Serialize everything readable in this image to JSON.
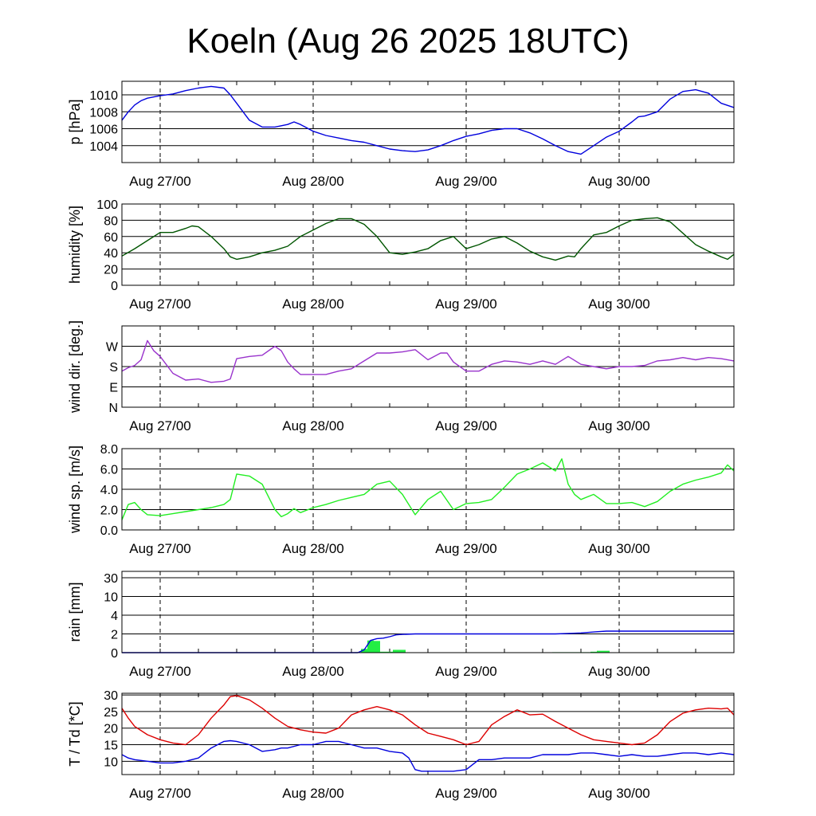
{
  "title": "Koeln (Aug 26 2025 18UTC)",
  "x_labels": [
    "Aug 27/00",
    "Aug 28/00",
    "Aug 29/00",
    "Aug 30/00"
  ],
  "colors": {
    "pressure": "#0000dd",
    "humidity": "#005500",
    "wind_dir": "#9933cc",
    "wind_speed": "#22ee22",
    "rain_bar": "#22ee44",
    "rain_sum": "#0000dd",
    "temperature": "#dd0000",
    "dewpoint": "#0000dd"
  },
  "chart_data": [
    {
      "name": "pressure",
      "type": "line",
      "ylabel": "p [hPa]",
      "x_unit": "hours from Aug 26 18UTC",
      "xlim": [
        0,
        96
      ],
      "ylim": [
        1002,
        1011.6
      ],
      "yticks": [
        1004,
        1006,
        1008,
        1010
      ],
      "series": [
        {
          "name": "p",
          "x": [
            0,
            1,
            2,
            3,
            4,
            6,
            8,
            10,
            12,
            14,
            16,
            17,
            18,
            19,
            20,
            22,
            24,
            26,
            27,
            28,
            30,
            32,
            34,
            36,
            38,
            40,
            42,
            44,
            46,
            48,
            50,
            52,
            54,
            56,
            58,
            60,
            62,
            64,
            66,
            68,
            70,
            72,
            74,
            76,
            78,
            80,
            81,
            82,
            84,
            86,
            88,
            90,
            92,
            94,
            96
          ],
          "y": [
            1007.0,
            1008.0,
            1008.8,
            1009.3,
            1009.6,
            1009.9,
            1010.1,
            1010.5,
            1010.8,
            1011.0,
            1010.8,
            1010.0,
            1009.0,
            1008.0,
            1007.0,
            1006.2,
            1006.2,
            1006.5,
            1006.8,
            1006.5,
            1005.7,
            1005.2,
            1004.9,
            1004.6,
            1004.4,
            1004.0,
            1003.6,
            1003.4,
            1003.3,
            1003.5,
            1004.0,
            1004.6,
            1005.1,
            1005.4,
            1005.8,
            1006.0,
            1006.0,
            1005.5,
            1004.8,
            1004.0,
            1003.3,
            1003.0,
            1004.0,
            1005.0,
            1005.7,
            1006.8,
            1007.4,
            1007.5,
            1008.0,
            1009.5,
            1010.4,
            1010.6,
            1010.2,
            1009.0,
            1008.5
          ]
        }
      ]
    },
    {
      "name": "humidity",
      "type": "line",
      "ylabel": "humidity [%]",
      "xlim": [
        0,
        96
      ],
      "ylim": [
        0,
        100
      ],
      "yticks": [
        0,
        20,
        40,
        60,
        80,
        100
      ],
      "series": [
        {
          "name": "rh",
          "x": [
            0,
            2,
            4,
            6,
            8,
            10,
            11,
            12,
            14,
            16,
            17,
            18,
            20,
            22,
            24,
            26,
            28,
            30,
            32,
            34,
            36,
            38,
            40,
            42,
            44,
            46,
            48,
            50,
            52,
            54,
            56,
            58,
            60,
            62,
            64,
            66,
            68,
            70,
            71,
            72,
            74,
            76,
            78,
            80,
            82,
            84,
            86,
            88,
            90,
            92,
            94,
            95,
            96
          ],
          "y": [
            36,
            45,
            55,
            65,
            65,
            70,
            73,
            72,
            60,
            45,
            35,
            32,
            35,
            40,
            43,
            48,
            60,
            68,
            76,
            82,
            82,
            75,
            60,
            40,
            38,
            41,
            45,
            55,
            60,
            45,
            50,
            57,
            60,
            52,
            42,
            35,
            31,
            36,
            35,
            45,
            62,
            65,
            73,
            80,
            82,
            83,
            78,
            64,
            50,
            42,
            35,
            32,
            38
          ]
        }
      ]
    },
    {
      "name": "wind_direction",
      "type": "line",
      "ylabel": "wind dir. [deg.]",
      "xlim": [
        0,
        96
      ],
      "ylim": [
        0,
        360
      ],
      "yticks": [
        0,
        90,
        180,
        270
      ],
      "ytick_labels": [
        "N",
        "E",
        "S",
        "W"
      ],
      "series": [
        {
          "name": "dd",
          "x": [
            0,
            1,
            2,
            3,
            4,
            5,
            6,
            8,
            10,
            12,
            14,
            16,
            17,
            18,
            20,
            22,
            24,
            25,
            26,
            27,
            28,
            30,
            32,
            34,
            36,
            38,
            40,
            42,
            44,
            46,
            48,
            50,
            51,
            52,
            54,
            56,
            58,
            60,
            62,
            64,
            66,
            68,
            70,
            72,
            74,
            76,
            78,
            80,
            82,
            84,
            86,
            88,
            90,
            92,
            94,
            96
          ],
          "y": [
            160,
            175,
            185,
            210,
            295,
            250,
            225,
            150,
            120,
            125,
            110,
            115,
            125,
            215,
            225,
            230,
            270,
            250,
            200,
            170,
            145,
            145,
            145,
            160,
            170,
            205,
            240,
            240,
            245,
            255,
            210,
            240,
            240,
            200,
            160,
            160,
            190,
            205,
            200,
            190,
            205,
            190,
            225,
            190,
            180,
            170,
            180,
            180,
            185,
            205,
            210,
            220,
            210,
            220,
            215,
            205
          ]
        }
      ]
    },
    {
      "name": "wind_speed",
      "type": "line",
      "ylabel": "wind sp. [m/s]",
      "xlim": [
        0,
        96
      ],
      "ylim": [
        0,
        8
      ],
      "yticks": [
        0,
        2,
        4,
        6,
        8
      ],
      "ytick_labels": [
        "0.0",
        "2.0",
        "4.0",
        "6.0",
        "8.0"
      ],
      "series": [
        {
          "name": "ff",
          "x": [
            0,
            1,
            2,
            3,
            4,
            6,
            8,
            10,
            12,
            14,
            16,
            17,
            18,
            20,
            22,
            24,
            25,
            26,
            27,
            28,
            30,
            32,
            34,
            36,
            38,
            40,
            42,
            44,
            46,
            48,
            50,
            52,
            54,
            56,
            58,
            60,
            62,
            64,
            66,
            68,
            69,
            70,
            71,
            72,
            74,
            76,
            78,
            80,
            82,
            84,
            86,
            88,
            90,
            92,
            94,
            95,
            96
          ],
          "y": [
            1.0,
            2.5,
            2.7,
            2.0,
            1.5,
            1.4,
            1.6,
            1.8,
            2.0,
            2.2,
            2.5,
            3.0,
            5.5,
            5.3,
            4.5,
            2.0,
            1.3,
            1.6,
            2.1,
            1.7,
            2.2,
            2.5,
            2.9,
            3.2,
            3.5,
            4.5,
            4.8,
            3.5,
            1.5,
            3.0,
            3.8,
            2.0,
            2.6,
            2.7,
            3.0,
            4.2,
            5.5,
            6.0,
            6.6,
            5.8,
            7.0,
            4.5,
            3.5,
            3.0,
            3.5,
            2.6,
            2.6,
            2.7,
            2.3,
            2.8,
            3.8,
            4.5,
            4.9,
            5.2,
            5.6,
            6.4,
            5.8
          ]
        }
      ]
    },
    {
      "name": "rain",
      "type": "bar+line",
      "ylabel": "rain [mm]",
      "xlim": [
        0,
        96
      ],
      "ylim": [
        0,
        30
      ],
      "yscale": "custom (0, 2, 4, 10, 30 equally spaced)",
      "yticks": [
        0,
        2,
        4,
        10,
        30
      ],
      "bars": {
        "name": "hourly rain",
        "x": [
          37,
          38,
          39,
          40,
          41,
          42,
          43,
          44,
          45,
          46,
          47,
          48,
          68,
          69,
          70,
          71,
          72,
          73,
          74,
          75,
          76
        ],
        "values": [
          0.05,
          0.4,
          1.3,
          1.25,
          0.1,
          0.1,
          0.3,
          0.3,
          0.02,
          0.01,
          0.01,
          0.01,
          0.05,
          0.05,
          0.05,
          0.05,
          0.05,
          0.05,
          0.1,
          0.2,
          0.2
        ]
      },
      "series": [
        {
          "name": "rain sum",
          "x": [
            0,
            37,
            38,
            39,
            40,
            41,
            42,
            43,
            44,
            46,
            48,
            60,
            68,
            70,
            72,
            74,
            76,
            78,
            84,
            90,
            96
          ],
          "y": [
            0,
            0,
            0.3,
            1.3,
            1.5,
            1.55,
            1.7,
            1.9,
            1.95,
            2.0,
            2.0,
            2.0,
            2.0,
            2.05,
            2.1,
            2.2,
            2.3,
            2.3,
            2.3,
            2.3,
            2.3
          ]
        }
      ]
    },
    {
      "name": "temperature",
      "type": "line",
      "ylabel": "T / Td [*C]",
      "xlim": [
        0,
        96
      ],
      "ylim": [
        6,
        30.5
      ],
      "yticks": [
        10,
        15,
        20,
        25,
        30
      ],
      "series": [
        {
          "name": "T",
          "x": [
            0,
            1,
            2,
            4,
            6,
            8,
            10,
            12,
            14,
            16,
            17,
            18,
            20,
            22,
            24,
            26,
            28,
            30,
            32,
            34,
            36,
            38,
            40,
            42,
            44,
            46,
            48,
            50,
            52,
            54,
            56,
            58,
            60,
            62,
            64,
            66,
            68,
            70,
            72,
            74,
            76,
            78,
            80,
            82,
            84,
            86,
            88,
            90,
            92,
            94,
            95,
            96
          ],
          "y": [
            26,
            23,
            20.5,
            18,
            16.5,
            15.5,
            15,
            18,
            23,
            27,
            29.5,
            29.8,
            28.5,
            26,
            23,
            20.5,
            19.5,
            18.8,
            18.5,
            20,
            24,
            25.5,
            26.5,
            25.5,
            24,
            21,
            18.5,
            17.5,
            16.5,
            15,
            16,
            21,
            23.5,
            25.5,
            24,
            24.2,
            22,
            20,
            18,
            16.5,
            16,
            15.5,
            15,
            15.5,
            18,
            22,
            24.5,
            25.5,
            26,
            25.8,
            26,
            24
          ]
        },
        {
          "name": "Td",
          "x": [
            0,
            1,
            2,
            4,
            6,
            8,
            10,
            12,
            14,
            16,
            17,
            18,
            20,
            22,
            24,
            25,
            26,
            28,
            30,
            32,
            34,
            36,
            38,
            40,
            42,
            44,
            45,
            46,
            47,
            48,
            50,
            52,
            54,
            56,
            58,
            60,
            62,
            64,
            66,
            68,
            70,
            72,
            74,
            76,
            78,
            80,
            82,
            84,
            86,
            88,
            90,
            92,
            94,
            96
          ],
          "y": [
            12,
            11,
            10.5,
            10,
            9.5,
            9.5,
            10,
            11,
            14,
            16,
            16.2,
            16,
            15,
            13,
            13.5,
            14,
            14,
            15,
            15,
            16,
            16,
            15,
            14,
            14,
            13,
            12.5,
            11,
            7.5,
            7,
            7,
            7,
            7,
            7.5,
            10.5,
            10.5,
            11,
            11,
            11,
            12,
            12,
            12,
            12.5,
            12.5,
            12,
            11.5,
            12,
            11.5,
            11.5,
            12,
            12.5,
            12.5,
            12,
            12.5,
            12
          ]
        }
      ]
    }
  ]
}
